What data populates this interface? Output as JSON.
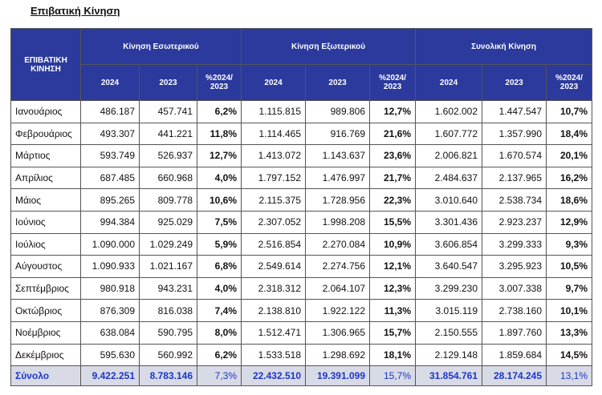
{
  "title": "Επιβατική Κίνηση",
  "table": {
    "corner": "ΕΠΙΒΑΤΙΚΗ ΚΙΝΗΣΗ",
    "groups": [
      "Κίνηση Εσωτερικού",
      "Κίνηση Εξωτερικού",
      "Συνολική Κίνηση"
    ],
    "subheaders": [
      "2024",
      "2023",
      "%2024/ 2023",
      "2024",
      "2023",
      "%2024/ 2023",
      "2024",
      "2023",
      "%2024/ 2023"
    ],
    "rows": [
      [
        "Ιανουάριος",
        "486.187",
        "457.741",
        "6,2%",
        "1.115.815",
        "989.806",
        "12,7%",
        "1.602.002",
        "1.447.547",
        "10,7%"
      ],
      [
        "Φεβρουάριος",
        "493.307",
        "441.221",
        "11,8%",
        "1.114.465",
        "916.769",
        "21,6%",
        "1.607.772",
        "1.357.990",
        "18,4%"
      ],
      [
        "Μάρτιος",
        "593.749",
        "526.937",
        "12,7%",
        "1.413.072",
        "1.143.637",
        "23,6%",
        "2.006.821",
        "1.670.574",
        "20,1%"
      ],
      [
        "Απρίλιος",
        "687.485",
        "660.968",
        "4,0%",
        "1.797.152",
        "1.476.997",
        "21,7%",
        "2.484.637",
        "2.137.965",
        "16,2%"
      ],
      [
        "Μάιος",
        "895.265",
        "809.778",
        "10,6%",
        "2.115.375",
        "1.728.956",
        "22,3%",
        "3.010.640",
        "2.538.734",
        "18,6%"
      ],
      [
        "Ιούνιος",
        "994.384",
        "925.029",
        "7,5%",
        "2.307.052",
        "1.998.208",
        "15,5%",
        "3.301.436",
        "2.923.237",
        "12,9%"
      ],
      [
        "Ιούλιος",
        "1.090.000",
        "1.029.249",
        "5,9%",
        "2.516.854",
        "2.270.084",
        "10,9%",
        "3.606.854",
        "3.299.333",
        "9,3%"
      ],
      [
        "Αύγουστος",
        "1.090.933",
        "1.021.167",
        "6,8%",
        "2.549.614",
        "2.274.756",
        "12,1%",
        "3.640.547",
        "3.295.923",
        "10,5%"
      ],
      [
        "Σεπτέμβριος",
        "980.918",
        "943.231",
        "4,0%",
        "2.318.312",
        "2.064.107",
        "12,3%",
        "3.299.230",
        "3.007.338",
        "9,7%"
      ],
      [
        "Οκτώβριος",
        "876.309",
        "816.038",
        "7,4%",
        "2.138.810",
        "1.922.122",
        "11,3%",
        "3.015.119",
        "2.738.160",
        "10,1%"
      ],
      [
        "Νοέμβριος",
        "638.084",
        "590.795",
        "8,0%",
        "1.512.471",
        "1.306.965",
        "15,7%",
        "2.150.555",
        "1.897.760",
        "13,3%"
      ],
      [
        "Δεκέμβριος",
        "595.630",
        "560.992",
        "6,2%",
        "1.533.518",
        "1.298.692",
        "18,1%",
        "2.129.148",
        "1.859.684",
        "14,5%"
      ]
    ],
    "total": [
      "Σύνολο",
      "9.422.251",
      "8.783.146",
      "7,3%",
      "22.432.510",
      "19.391.099",
      "15,7%",
      "31.854.761",
      "28.174.245",
      "13,1%"
    ]
  }
}
